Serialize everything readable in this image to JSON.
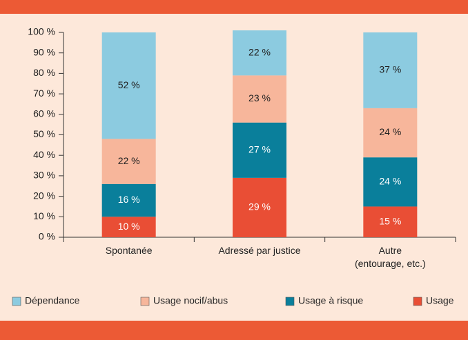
{
  "chart_data": {
    "type": "stacked_bar",
    "categories": [
      "Spontanée",
      "Adressé par justice",
      "Autre\n(entourage, etc.)"
    ],
    "series": [
      {
        "name": "Dépendance",
        "color": "#8ccbe0",
        "label_color": "#222222",
        "values": [
          52,
          22,
          37
        ],
        "value_labels": [
          "52 %",
          "22 %",
          "37 %"
        ]
      },
      {
        "name": "Usage nocif/abus",
        "color": "#f7b69b",
        "label_color": "#222222",
        "values": [
          22,
          23,
          24
        ],
        "value_labels": [
          "22 %",
          "23 %",
          "24 %"
        ]
      },
      {
        "name": "Usage à risque",
        "color": "#0a7f9b",
        "label_color": "#ffffff",
        "values": [
          16,
          27,
          24
        ],
        "value_labels": [
          "16 %",
          "27 %",
          "24 %"
        ]
      },
      {
        "name": "Usage",
        "color": "#e94e35",
        "label_color": "#ffffff",
        "values": [
          10,
          29,
          15
        ],
        "value_labels": [
          "10 %",
          "29 %",
          "15 %"
        ]
      }
    ],
    "ylim": [
      0,
      100
    ],
    "yticks": [
      {
        "value": 0,
        "label": "0 %"
      },
      {
        "value": 10,
        "label": "10 %"
      },
      {
        "value": 20,
        "label": "20 %"
      },
      {
        "value": 30,
        "label": "30 %"
      },
      {
        "value": 40,
        "label": "40 %"
      },
      {
        "value": 50,
        "label": "50 %"
      },
      {
        "value": 60,
        "label": "60 %"
      },
      {
        "value": 70,
        "label": "70 %"
      },
      {
        "value": 80,
        "label": "80 %"
      },
      {
        "value": 90,
        "label": "90 %"
      },
      {
        "value": 100,
        "label": "100 %"
      }
    ],
    "legend": "bottom"
  }
}
